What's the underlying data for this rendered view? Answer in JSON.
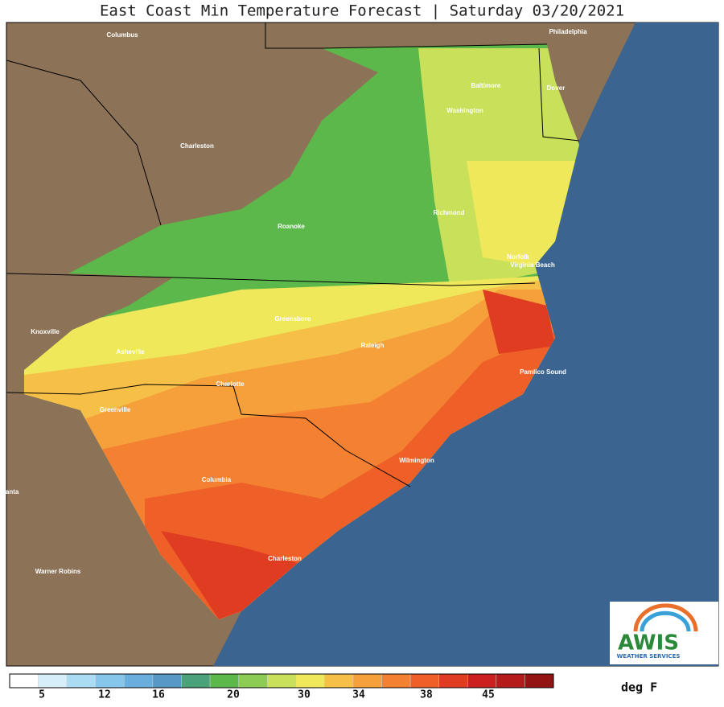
{
  "header": {
    "title": "East Coast Min Temperature Forecast | Saturday 03/20/2021"
  },
  "cities": [
    "Columbus",
    "Philadelphia",
    "Baltimore",
    "Dover",
    "Washington",
    "Charleston",
    "Richmond",
    "Roanoke",
    "Norfolk",
    "Virginia Beach",
    "Greensboro",
    "Knoxville",
    "Asheville",
    "Raleigh",
    "Pamlico Sound",
    "Charlotte",
    "Greenville",
    "Wilmington",
    "Columbia",
    "Charleston",
    "lanta",
    "Warner Robins"
  ],
  "legend": {
    "colors": [
      "#ffffff",
      "#d6eefa",
      "#aadcf4",
      "#86c6ea",
      "#6aaede",
      "#5898c6",
      "#4aa27a",
      "#5cb84a",
      "#8ccc52",
      "#c8e05a",
      "#eee85a",
      "#f6c048",
      "#f6a03c",
      "#f48032",
      "#ee6028",
      "#e03c22",
      "#cc2020",
      "#b41c1c",
      "#941414"
    ],
    "ticks": [
      "5",
      "12",
      "16",
      "20",
      "30",
      "34",
      "38",
      "45"
    ],
    "unit": "deg F"
  },
  "logo": {
    "name": "AWIS",
    "tagline": "WEATHER SERVICES"
  }
}
